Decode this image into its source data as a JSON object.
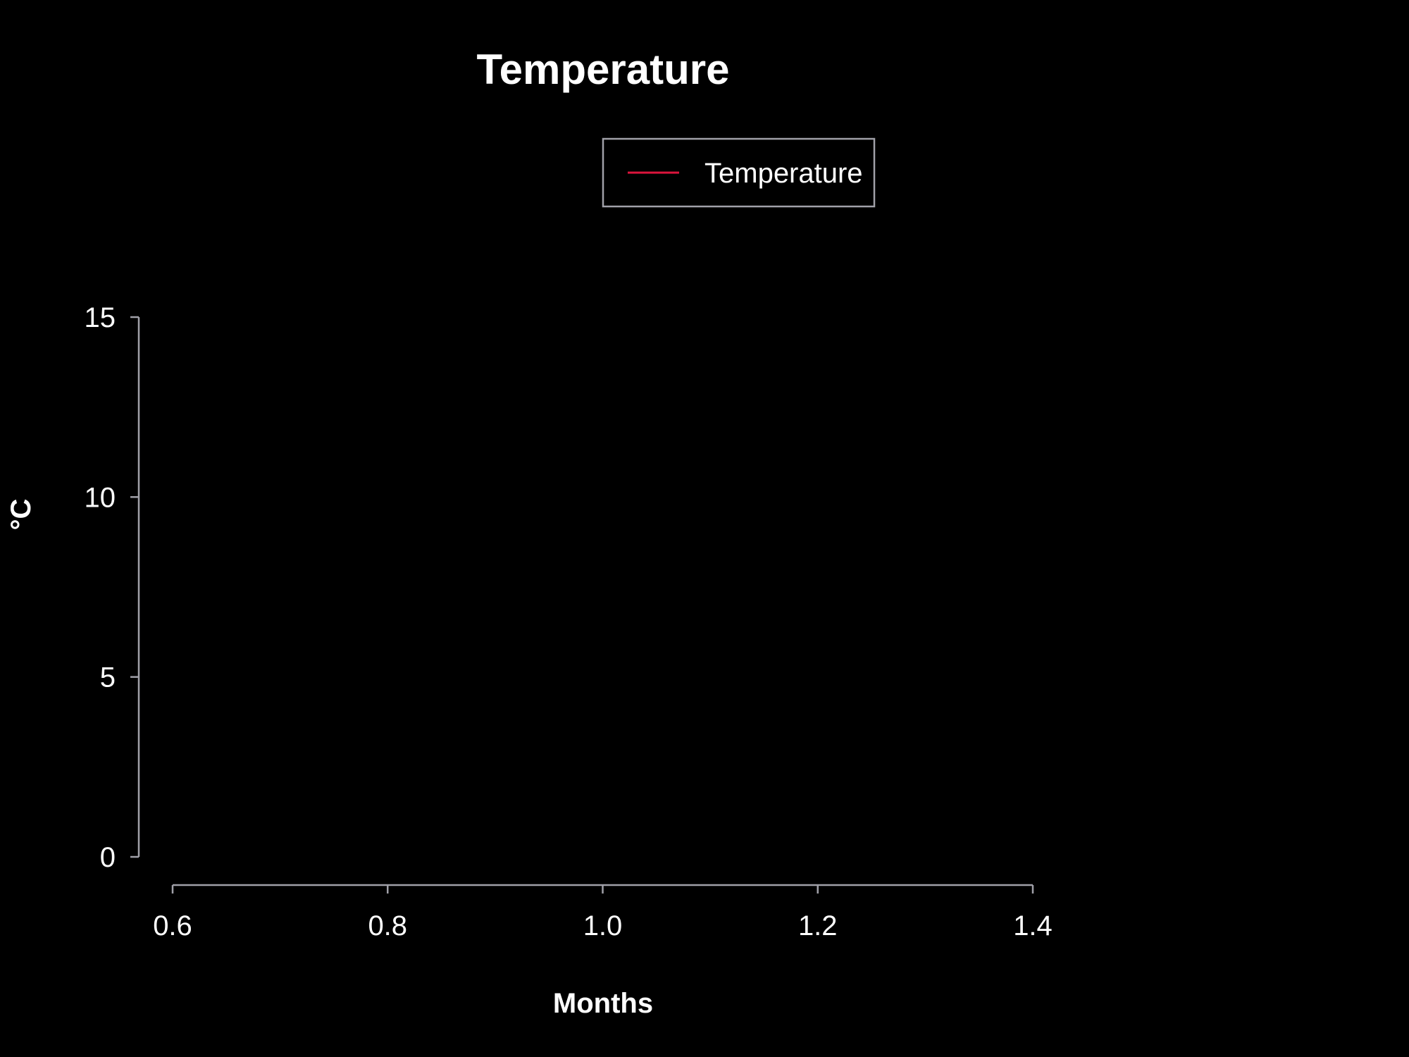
{
  "chart_data": {
    "type": "line",
    "title": "Temperature",
    "xlabel": "Months",
    "ylabel": "°C",
    "xlim": [
      0.6,
      1.4
    ],
    "ylim": [
      0,
      15
    ],
    "x_ticks": [
      "0.6",
      "0.8",
      "1.0",
      "1.2",
      "1.4"
    ],
    "y_ticks": [
      "0",
      "5",
      "10",
      "15"
    ],
    "grid": false,
    "legend_position": "top-center",
    "series": [
      {
        "name": "Temperature",
        "color": "#dc143c",
        "x": [],
        "y": []
      }
    ],
    "colors": {
      "background": "#000000",
      "axis": "#a0a0a8",
      "text": "#ffffff"
    }
  }
}
